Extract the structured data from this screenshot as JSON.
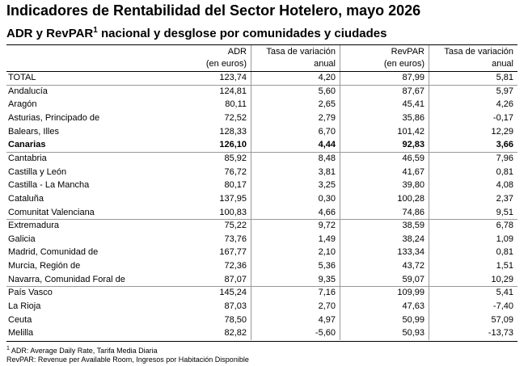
{
  "header": {
    "title": "Indicadores de Rentabilidad del Sector Hotelero, mayo 2026",
    "subtitle": {
      "before": "ADR y RevPAR",
      "sup": "1",
      "after": " nacional y desglose por comunidades y ciudades"
    }
  },
  "table": {
    "columns": [
      [
        "ADR",
        "(en euros)"
      ],
      [
        "Tasa de variación",
        "anual"
      ],
      [
        "RevPAR",
        "(en euros)"
      ],
      [
        "Tasa de variación",
        "anual"
      ]
    ],
    "rows": [
      [
        "TOTAL",
        "123,74",
        "4,20",
        "87,99",
        "5,81"
      ],
      [
        "Andalucía",
        "124,81",
        "5,60",
        "87,67",
        "5,97"
      ],
      [
        "Aragón",
        "80,11",
        "2,65",
        "45,41",
        "4,26"
      ],
      [
        "Asturias, Principado de",
        "72,52",
        "2,79",
        "35,86",
        "-0,17"
      ],
      [
        "Balears, Illes",
        "128,33",
        "6,70",
        "101,42",
        "12,29"
      ],
      [
        "Canarias",
        "126,10",
        "4,44",
        "92,83",
        "3,66"
      ],
      [
        "Cantabria",
        "85,92",
        "8,48",
        "46,59",
        "7,96"
      ],
      [
        "Castilla y León",
        "76,72",
        "3,81",
        "41,67",
        "0,81"
      ],
      [
        "Castilla - La Mancha",
        "80,17",
        "3,25",
        "39,80",
        "4,08"
      ],
      [
        "Cataluña",
        "137,95",
        "0,30",
        "100,28",
        "2,37"
      ],
      [
        "Comunitat Valenciana",
        "100,83",
        "4,66",
        "74,86",
        "9,51"
      ],
      [
        "Extremadura",
        "75,22",
        "9,72",
        "38,59",
        "6,78"
      ],
      [
        "Galicia",
        "73,76",
        "1,49",
        "38,24",
        "1,09"
      ],
      [
        "Madrid, Comunidad de",
        "167,77",
        "2,10",
        "133,34",
        "0,81"
      ],
      [
        "Murcia, Región de",
        "72,36",
        "5,36",
        "43,72",
        "1,51"
      ],
      [
        "Navarra, Comunidad Foral de",
        "87,07",
        "9,35",
        "59,07",
        "10,29"
      ],
      [
        "País Vasco",
        "145,24",
        "7,16",
        "109,99",
        "5,41"
      ],
      [
        "La Rioja",
        "87,03",
        "2,70",
        "47,63",
        "-7,40"
      ],
      [
        "Ceuta",
        "78,50",
        "4,97",
        "50,99",
        "57,09"
      ],
      [
        "Melilla",
        "82,82",
        "-5,60",
        "50,93",
        "-13,73"
      ]
    ]
  },
  "footnotes": [
    {
      "sup": "1",
      "text": " ADR: Average Daily Rate, Tarifa Media Diaria"
    },
    {
      "text": "RevPAR: Revenue per Available Room, Ingresos por Habitación Disponible"
    }
  ]
}
